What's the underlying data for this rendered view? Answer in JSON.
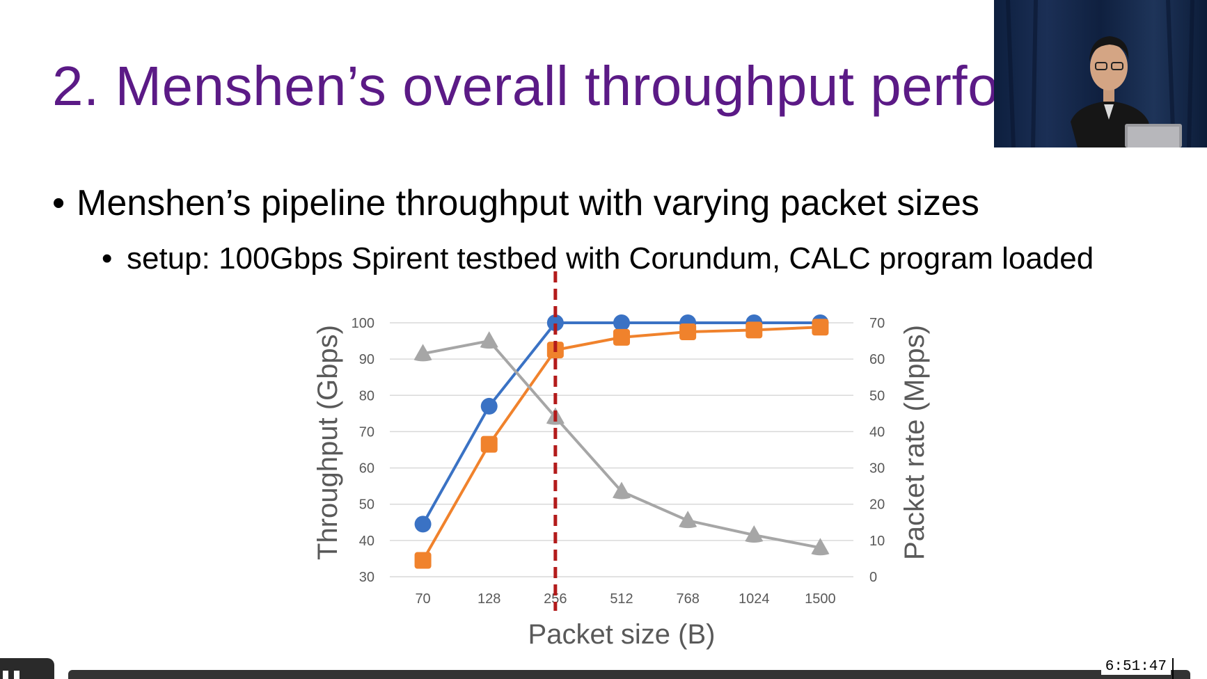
{
  "slide": {
    "title": "2. Menshen’s overall throughput perfo",
    "bullets": {
      "level1": "Menshen’s pipeline throughput with varying packet sizes",
      "level2": "setup: 100Gbps Spirent testbed with Corundum, CALC program loaded"
    }
  },
  "player": {
    "timestamp": "6:51:47",
    "play_icon": "pause-icon"
  },
  "chart_data": {
    "type": "line",
    "categories": [
      "70",
      "128",
      "256",
      "512",
      "768",
      "1024",
      "1500"
    ],
    "xlabel": "Packet size (B)",
    "ylabel": "Throughput (Gbps)",
    "ylabel_right": "Packet rate (Mpps)",
    "ylim": [
      30,
      100
    ],
    "yticks": [
      30,
      40,
      50,
      60,
      70,
      80,
      90,
      100
    ],
    "ylim_right": [
      0,
      70
    ],
    "yticks_right": [
      0,
      10,
      20,
      30,
      40,
      50,
      60,
      70
    ],
    "grid": true,
    "reference_line": {
      "category_index": 2,
      "style": "dashed",
      "color": "#b31b1b"
    },
    "series": [
      {
        "axis": "left",
        "marker": "circle",
        "color": "#3a72c4",
        "values": [
          44.5,
          77,
          100,
          100,
          100,
          100,
          100
        ]
      },
      {
        "axis": "left",
        "marker": "square",
        "color": "#f0822c",
        "values": [
          34.5,
          66.5,
          92.5,
          96,
          97.5,
          98,
          98.8
        ]
      },
      {
        "axis": "right",
        "marker": "triangle",
        "color": "#a6a6a6",
        "values": [
          61.5,
          65,
          44,
          23.5,
          15.5,
          11.5,
          8
        ]
      }
    ]
  }
}
